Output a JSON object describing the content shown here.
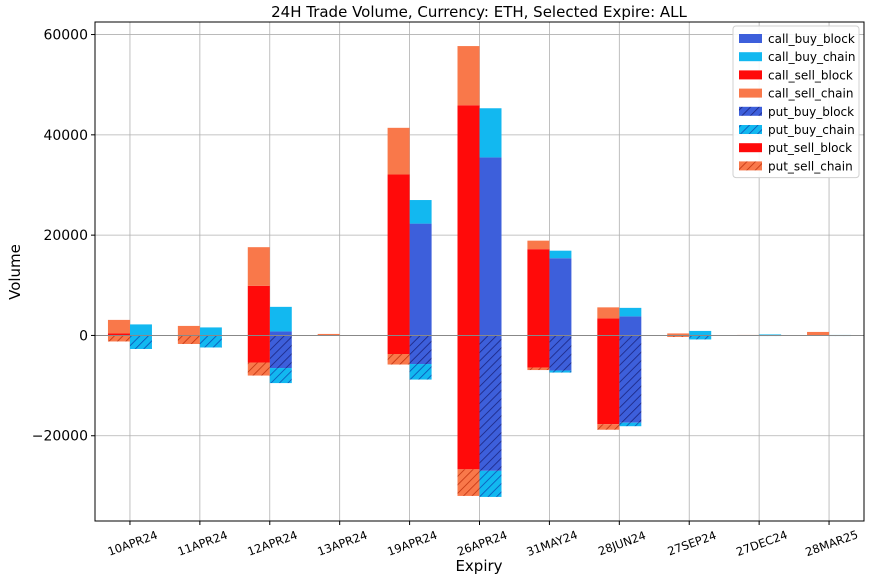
{
  "chart_data": {
    "type": "bar",
    "title": "24H Trade Volume, Currency: ETH, Selected Expire: ALL",
    "xlabel": "Expiry",
    "ylabel": "Volume",
    "ylim": [
      -37000,
      62500
    ],
    "yticks": [
      -20000,
      0,
      20000,
      40000,
      60000
    ],
    "ytick_labels": [
      "−20000",
      "0",
      "20000",
      "40000",
      "60000"
    ],
    "grid": true,
    "legend_position": "top-right",
    "categories": [
      "10APR24",
      "11APR24",
      "12APR24",
      "13APR24",
      "19APR24",
      "26APR24",
      "31MAY24",
      "28JUN24",
      "27SEP24",
      "27DEC24",
      "28MAR25"
    ],
    "series": [
      {
        "name": "call_buy_block",
        "color": "#3d5fdb",
        "hatch": false,
        "group": "buy",
        "direction": "up",
        "values": [
          0,
          0,
          800,
          0,
          22300,
          35500,
          15400,
          3800,
          0,
          0,
          0
        ]
      },
      {
        "name": "call_buy_chain",
        "color": "#12b8f0",
        "hatch": false,
        "group": "buy",
        "direction": "up",
        "values": [
          2200,
          1600,
          4900,
          0,
          4700,
          9800,
          1500,
          1700,
          900,
          200,
          100
        ]
      },
      {
        "name": "call_sell_block",
        "color": "#ff0a0a",
        "hatch": false,
        "group": "sell",
        "direction": "up",
        "values": [
          400,
          0,
          9900,
          0,
          32100,
          45900,
          17200,
          3400,
          0,
          0,
          0
        ]
      },
      {
        "name": "call_sell_chain",
        "color": "#f9784a",
        "hatch": false,
        "group": "sell",
        "direction": "up",
        "values": [
          2700,
          1900,
          7700,
          300,
          9300,
          11800,
          1700,
          2200,
          400,
          100,
          700
        ]
      },
      {
        "name": "put_buy_block",
        "color": "#3d5fdb",
        "hatch": true,
        "group": "buy",
        "direction": "down",
        "values": [
          0,
          0,
          -6500,
          0,
          -5700,
          -27000,
          -7000,
          -17400,
          0,
          0,
          0
        ]
      },
      {
        "name": "put_buy_chain",
        "color": "#12b8f0",
        "hatch": true,
        "group": "buy",
        "direction": "down",
        "values": [
          -2700,
          -2400,
          -3000,
          0,
          -3100,
          -5200,
          -400,
          -700,
          -800,
          -100,
          -100
        ]
      },
      {
        "name": "put_sell_block",
        "color": "#ff0a0a",
        "hatch": false,
        "group": "sell",
        "direction": "down",
        "values": [
          0,
          0,
          -5400,
          0,
          -3700,
          -26700,
          -6400,
          -17700,
          0,
          0,
          0
        ]
      },
      {
        "name": "put_sell_chain",
        "color": "#f9784a",
        "hatch": true,
        "group": "sell",
        "direction": "down",
        "values": [
          -1200,
          -1700,
          -2600,
          0,
          -2100,
          -5300,
          -500,
          -1100,
          -300,
          0,
          0
        ]
      }
    ]
  }
}
